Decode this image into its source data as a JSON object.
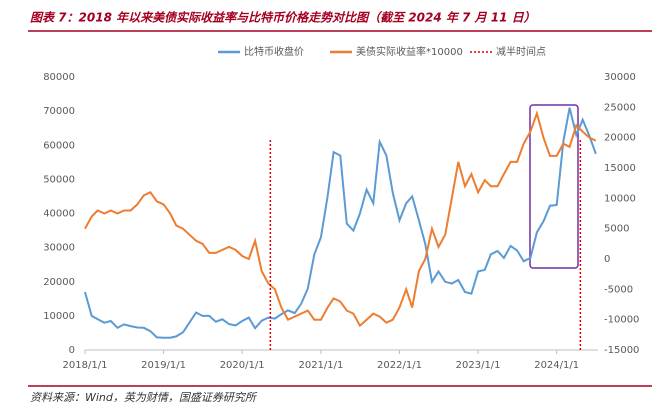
{
  "chart_data": {
    "type": "line",
    "title": "图表 7：2018 年以来美债实际收益率与比特币价格走势对比图（截至 2024 年 7 月 11 日）",
    "source": "资料来源：Wind，英为财情，国盛证券研究所",
    "x": [
      "2018/1/1",
      "2018/2/1",
      "2018/3/1",
      "2018/4/1",
      "2018/5/1",
      "2018/6/1",
      "2018/7/1",
      "2018/8/1",
      "2018/9/1",
      "2018/10/1",
      "2018/11/1",
      "2018/12/1",
      "2019/1/1",
      "2019/2/1",
      "2019/3/1",
      "2019/4/1",
      "2019/5/1",
      "2019/6/1",
      "2019/7/1",
      "2019/8/1",
      "2019/9/1",
      "2019/10/1",
      "2019/11/1",
      "2019/12/1",
      "2020/1/1",
      "2020/2/1",
      "2020/3/1",
      "2020/4/1",
      "2020/5/1",
      "2020/6/1",
      "2020/7/1",
      "2020/8/1",
      "2020/9/1",
      "2020/10/1",
      "2020/11/1",
      "2020/12/1",
      "2021/1/1",
      "2021/2/1",
      "2021/3/1",
      "2021/4/1",
      "2021/5/1",
      "2021/6/1",
      "2021/7/1",
      "2021/8/1",
      "2021/9/1",
      "2021/10/1",
      "2021/11/1",
      "2021/12/1",
      "2022/1/1",
      "2022/2/1",
      "2022/3/1",
      "2022/4/1",
      "2022/5/1",
      "2022/6/1",
      "2022/7/1",
      "2022/8/1",
      "2022/9/1",
      "2022/10/1",
      "2022/11/1",
      "2022/12/1",
      "2023/1/1",
      "2023/2/1",
      "2023/3/1",
      "2023/4/1",
      "2023/5/1",
      "2023/6/1",
      "2023/7/1",
      "2023/8/1",
      "2023/9/1",
      "2023/10/1",
      "2023/11/1",
      "2023/12/1",
      "2024/1/1",
      "2024/2/1",
      "2024/3/1",
      "2024/4/1",
      "2024/5/1",
      "2024/6/1",
      "2024/7/1"
    ],
    "series": [
      {
        "name": "比特币收盘价",
        "color": "#5b9bd5",
        "axis": "y",
        "values": [
          17000,
          10000,
          9000,
          8000,
          8500,
          6500,
          7500,
          7000,
          6600,
          6500,
          5500,
          3700,
          3600,
          3600,
          4000,
          5200,
          8000,
          11000,
          10000,
          10000,
          8300,
          9000,
          7600,
          7200,
          8500,
          9500,
          6400,
          8600,
          9500,
          9200,
          10500,
          11600,
          10800,
          13500,
          18000,
          28000,
          33000,
          45000,
          58000,
          57000,
          37000,
          35000,
          40000,
          47000,
          43000,
          61000,
          57000,
          46000,
          38000,
          43000,
          45000,
          38000,
          31000,
          20000,
          23000,
          20000,
          19500,
          20500,
          17000,
          16500,
          23000,
          23500,
          28000,
          29000,
          27000,
          30500,
          29200,
          26000,
          27000,
          34500,
          37700,
          42300,
          42500,
          61000,
          71000,
          63000,
          67500,
          62700,
          57500
        ]
      },
      {
        "name": "美债实际收益率*10000",
        "color": "#ed7d31",
        "axis": "y2",
        "values": [
          5000,
          7000,
          8000,
          7500,
          8000,
          7500,
          8000,
          8000,
          9000,
          10500,
          11000,
          9500,
          9000,
          7500,
          5500,
          5000,
          4000,
          3000,
          2500,
          1000,
          1000,
          1500,
          2000,
          1500,
          500,
          0,
          3000,
          -2000,
          -4000,
          -5000,
          -8000,
          -10000,
          -9500,
          -9000,
          -8500,
          -10000,
          -10000,
          -8000,
          -6500,
          -7000,
          -8500,
          -9000,
          -11000,
          -10000,
          -9000,
          -9500,
          -10500,
          -10000,
          -8000,
          -5000,
          -8000,
          -2000,
          0,
          5000,
          2000,
          4000,
          10000,
          16000,
          12000,
          14000,
          11000,
          13000,
          12000,
          12000,
          14000,
          16000,
          16000,
          19000,
          21000,
          24000,
          20000,
          17000,
          17000,
          19000,
          18500,
          22000,
          21000,
          20000,
          19500
        ]
      }
    ],
    "halving_label": "减半时间点",
    "halving_color": "#e00000",
    "halving_dates": [
      "2020/5/11",
      "2024/4/20"
    ],
    "xlim": [
      "2018/1/1",
      "2024/7/11"
    ],
    "xticks": [
      "2018/1/1",
      "2019/1/1",
      "2020/1/1",
      "2021/1/1",
      "2022/1/1",
      "2023/1/1",
      "2024/1/1"
    ],
    "ylim": [
      0,
      80000
    ],
    "yticks": [
      0,
      10000,
      20000,
      30000,
      40000,
      50000,
      60000,
      70000,
      80000
    ],
    "y2lim": [
      -15000,
      30000
    ],
    "y2ticks": [
      -15000,
      -10000,
      -5000,
      0,
      5000,
      10000,
      15000,
      20000,
      25000,
      30000
    ]
  }
}
